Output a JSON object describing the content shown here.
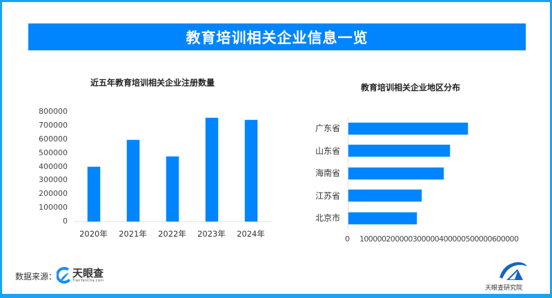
{
  "header": {
    "title": "教育培训相关企业信息一览"
  },
  "left_chart": {
    "title": "近五年教育培训相关企业注册数量",
    "y_ticks": [
      "800000",
      "700000",
      "600000",
      "500000",
      "400000",
      "300000",
      "200000",
      "100000",
      "0"
    ],
    "categories": [
      "2020年",
      "2021年",
      "2022年",
      "2023年",
      "2024年"
    ]
  },
  "right_chart": {
    "title": "教育培训相关企业地区分布",
    "categories": [
      "广东省",
      "山东省",
      "海南省",
      "江苏省",
      "北京市"
    ],
    "x_tick_zero": "0",
    "x_ticks_joined": "100000200000300000400000500000600000"
  },
  "footer": {
    "source_label": "数据来源：",
    "source_brand": "天眼查",
    "source_brand_sub": "TianYanCha.com",
    "institute_name": "天眼查研究院"
  },
  "colors": {
    "accent": "#0085ff",
    "border": "#1aa3f5",
    "text": "#333333"
  },
  "chart_data": [
    {
      "type": "bar",
      "title": "近五年教育培训相关企业注册数量",
      "categories": [
        "2020年",
        "2021年",
        "2022年",
        "2023年",
        "2024年"
      ],
      "values": [
        398000,
        596000,
        472000,
        754000,
        739000
      ],
      "xlabel": "",
      "ylabel": "",
      "ylim": [
        0,
        800000
      ],
      "y_ticks": [
        0,
        100000,
        200000,
        300000,
        400000,
        500000,
        600000,
        700000,
        800000
      ],
      "grid": false,
      "legend": "none",
      "orientation": "vertical"
    },
    {
      "type": "bar",
      "title": "教育培训相关企业地区分布",
      "categories": [
        "广东省",
        "山东省",
        "海南省",
        "江苏省",
        "北京市"
      ],
      "values": [
        524000,
        446000,
        418000,
        321000,
        301000
      ],
      "xlabel": "",
      "ylabel": "",
      "xlim": [
        0,
        600000
      ],
      "x_ticks": [
        0,
        100000,
        200000,
        300000,
        400000,
        500000,
        600000
      ],
      "grid": false,
      "legend": "none",
      "orientation": "horizontal"
    }
  ]
}
